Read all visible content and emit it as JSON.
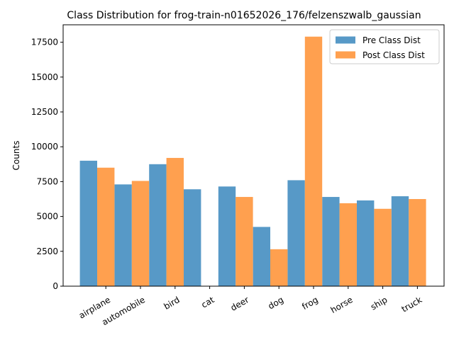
{
  "chart_data": {
    "type": "bar",
    "title": "Class Distribution for frog-train-n01652026_176/felzenszwalb_gaussian",
    "xlabel": "",
    "ylabel": "Counts",
    "categories": [
      "airplane",
      "automobile",
      "bird",
      "cat",
      "deer",
      "dog",
      "frog",
      "horse",
      "ship",
      "truck"
    ],
    "series": [
      {
        "name": "Pre Class Dist",
        "color": "#5799c7",
        "values": [
          9000,
          7300,
          8750,
          6950,
          7150,
          4250,
          7600,
          6400,
          6150,
          6450
        ]
      },
      {
        "name": "Post Class Dist",
        "color": "#ffa04f",
        "values": [
          8500,
          7550,
          9200,
          0,
          6400,
          2650,
          17900,
          5950,
          5550,
          6250
        ]
      }
    ],
    "ylim": [
      0,
      18750
    ],
    "yticks": [
      0,
      2500,
      5000,
      7500,
      10000,
      12500,
      15000,
      17500
    ],
    "ytick_labels": [
      "0",
      "2500",
      "5000",
      "7500",
      "10000",
      "12500",
      "15000",
      "17500"
    ],
    "legend_position": "top-right",
    "grid": false
  }
}
